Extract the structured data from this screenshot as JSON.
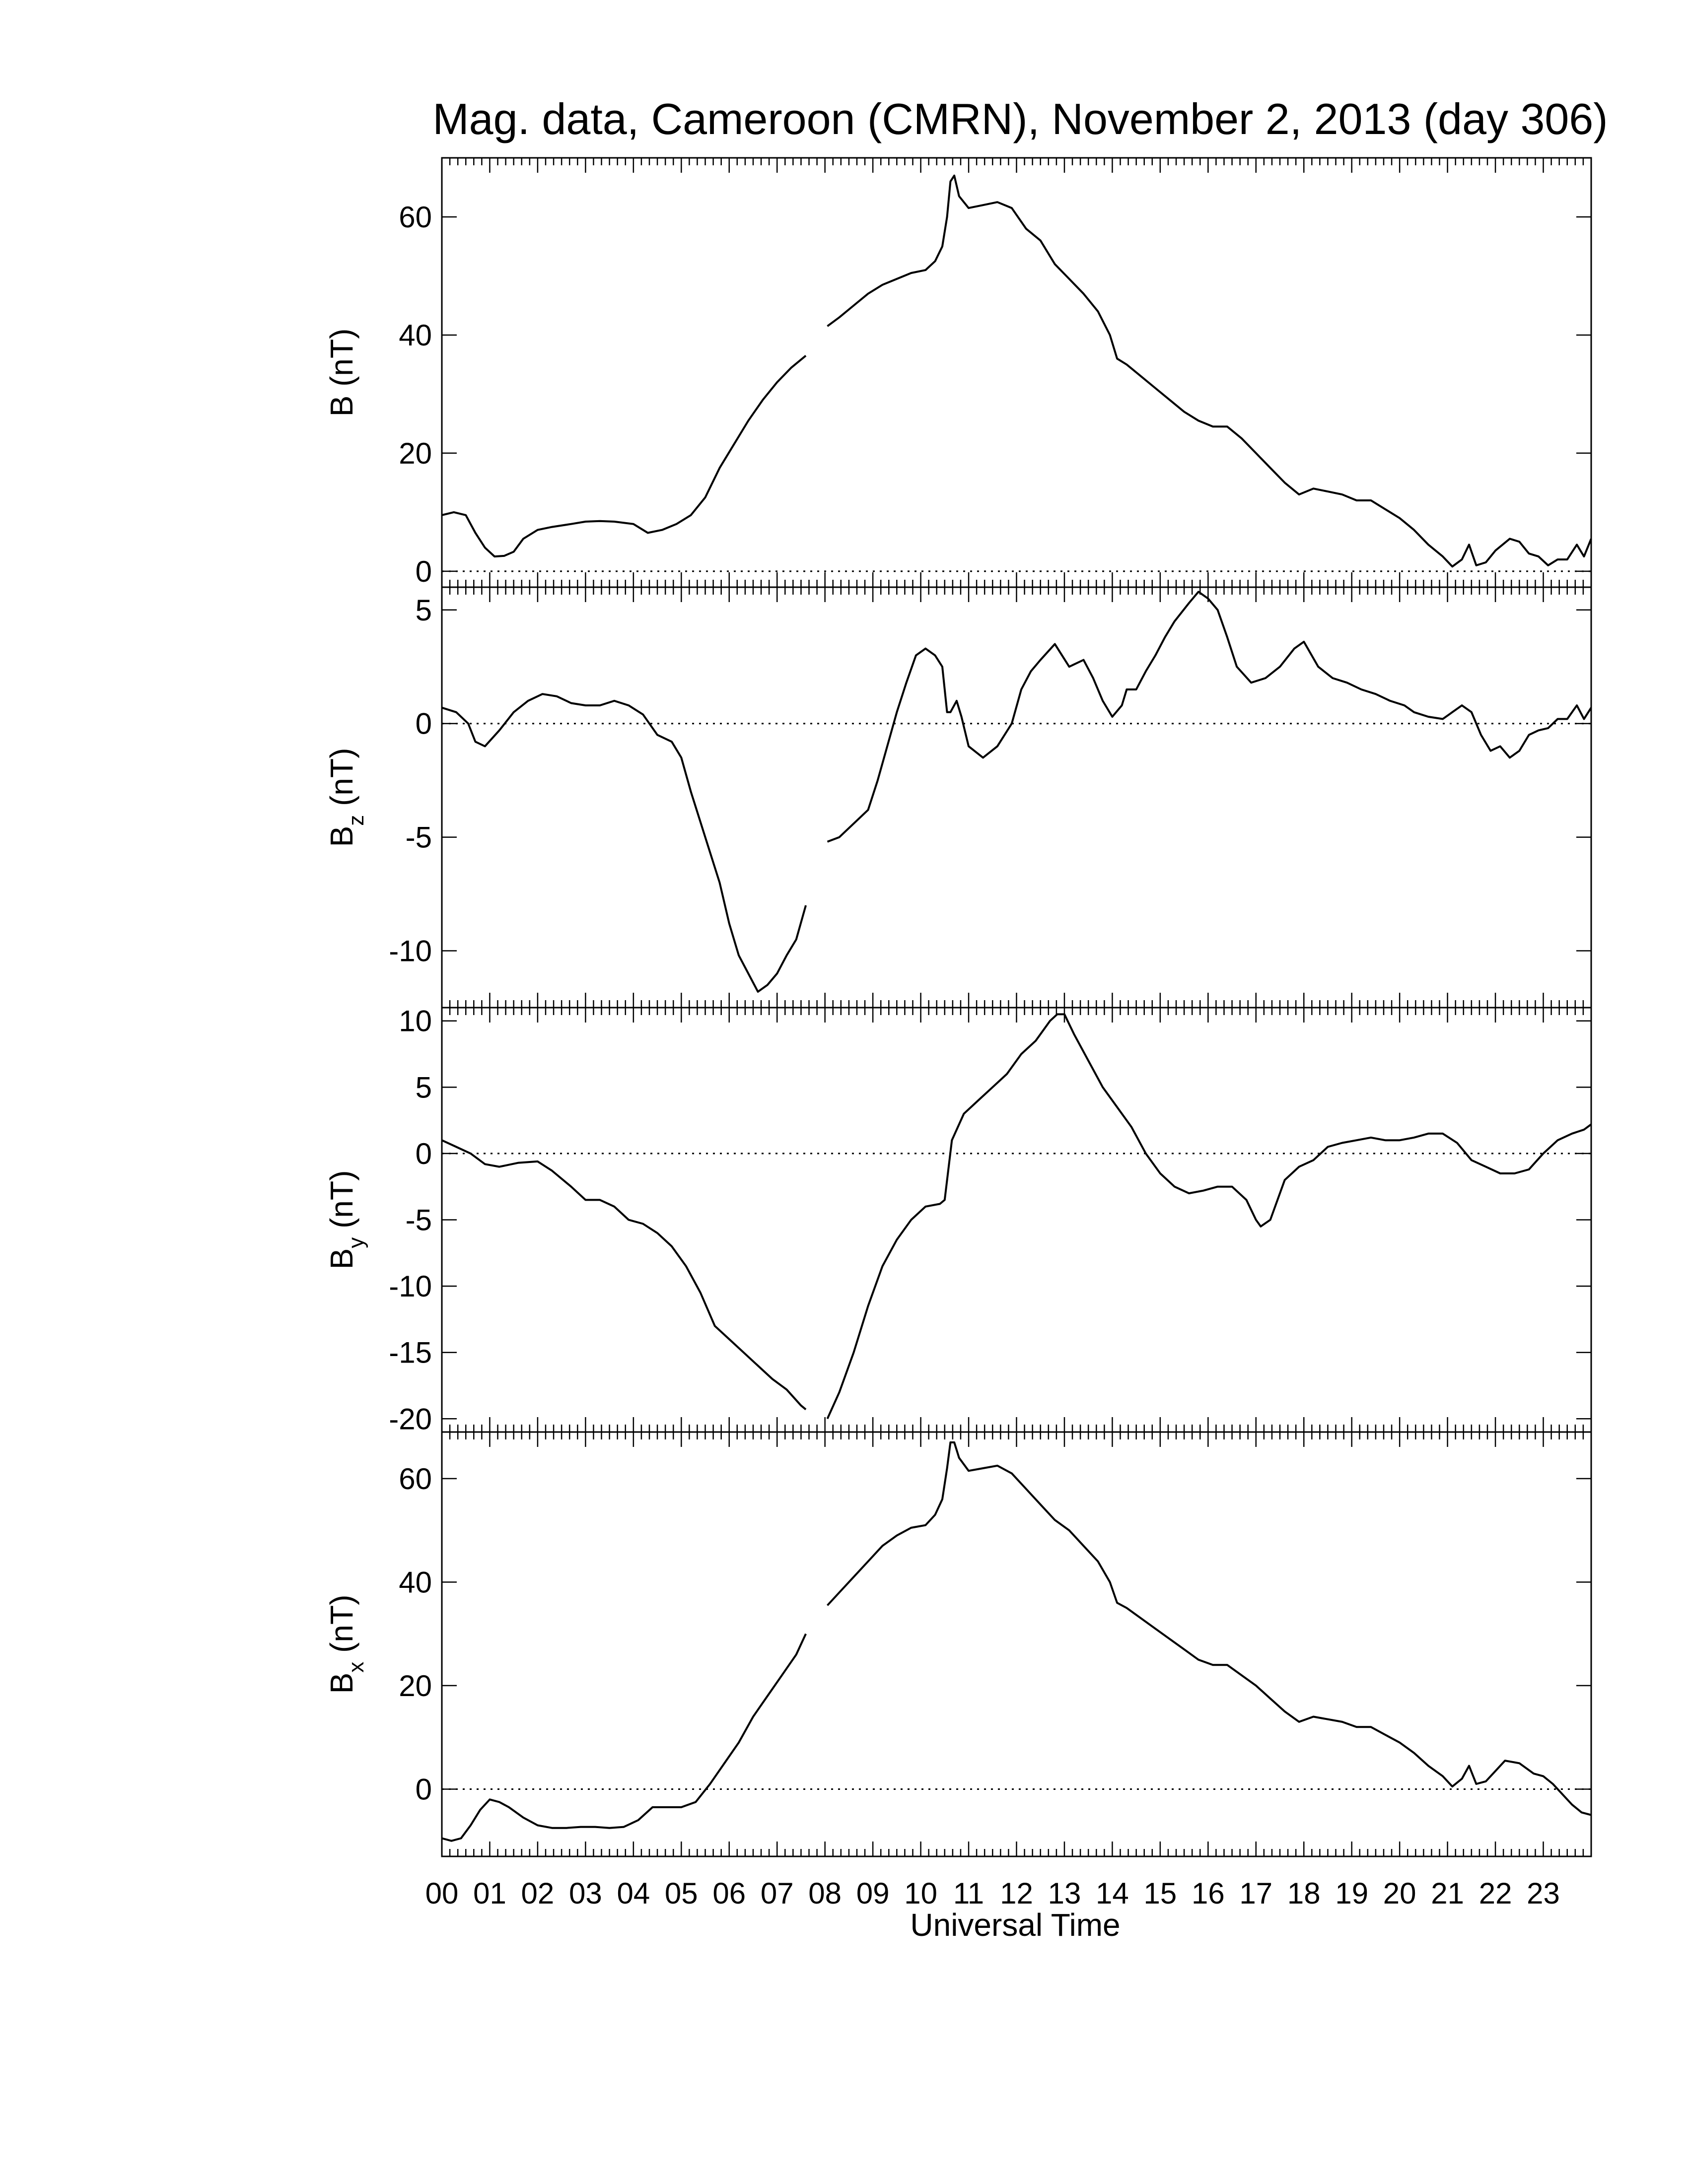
{
  "chart_data": {
    "type": "line",
    "title": "Mag. data, Cameroon (CMRN), November 2, 2013 (day 306)",
    "xlabel": "Universal Time",
    "xlim": [
      0,
      24
    ],
    "x_tick_labels": [
      "00",
      "01",
      "02",
      "03",
      "04",
      "05",
      "06",
      "07",
      "08",
      "09",
      "10",
      "11",
      "12",
      "13",
      "14",
      "15",
      "16",
      "17",
      "18",
      "19",
      "20",
      "21",
      "22",
      "23"
    ],
    "line_color": "#000000",
    "zero_reference_line": "dotted",
    "data_gap_hours": [
      7.6,
      8.05
    ],
    "panels": [
      {
        "id": "B",
        "ylabel_main": "B",
        "ylabel_sub": "",
        "ylabel_unit": " (nT)",
        "ylim": [
          -2.7,
          70
        ],
        "yticks": [
          0,
          20,
          40,
          60
        ],
        "x": [
          0,
          0.25,
          0.5,
          0.7,
          0.9,
          1.1,
          1.3,
          1.5,
          1.7,
          2,
          2.3,
          2.7,
          3,
          3.3,
          3.6,
          4,
          4.3,
          4.6,
          4.9,
          5.2,
          5.5,
          5.8,
          6.1,
          6.4,
          6.7,
          7,
          7.3,
          7.6,
          8.05,
          8.3,
          8.6,
          8.9,
          9.2,
          9.5,
          9.8,
          10.1,
          10.3,
          10.45,
          10.55,
          10.62,
          10.7,
          10.8,
          11,
          11.3,
          11.6,
          11.9,
          12.2,
          12.5,
          12.8,
          13.1,
          13.4,
          13.7,
          13.95,
          14.1,
          14.3,
          14.6,
          14.9,
          15.2,
          15.5,
          15.8,
          16.1,
          16.4,
          16.7,
          17,
          17.3,
          17.6,
          17.9,
          18.2,
          18.5,
          18.8,
          19.1,
          19.4,
          19.7,
          20,
          20.3,
          20.6,
          20.9,
          21.1,
          21.3,
          21.45,
          21.6,
          21.8,
          22,
          22.3,
          22.5,
          22.7,
          22.9,
          23.1,
          23.3,
          23.5,
          23.7,
          23.85,
          24
        ],
        "y": [
          9.5,
          10,
          9.5,
          6.5,
          4,
          2.5,
          2.6,
          3.3,
          5.5,
          7,
          7.5,
          8,
          8.4,
          8.5,
          8.4,
          8,
          6.5,
          7,
          8,
          9.5,
          12.5,
          17.5,
          21.5,
          25.5,
          29,
          32,
          34.5,
          36.5,
          41.5,
          43,
          45,
          47,
          48.5,
          49.5,
          50.5,
          51,
          52.5,
          55,
          60,
          66,
          67,
          63.5,
          61.5,
          62,
          62.5,
          61.5,
          58,
          56,
          52,
          49.5,
          47,
          44,
          40,
          36,
          35,
          33,
          31,
          29,
          27,
          25.5,
          24.5,
          24.5,
          22.5,
          20,
          17.5,
          15,
          13,
          14,
          13.5,
          13,
          12,
          12,
          10.5,
          9,
          7,
          4.5,
          2.5,
          0.8,
          2,
          4.5,
          1,
          1.5,
          3.5,
          5.5,
          5,
          3,
          2.5,
          1,
          2,
          2,
          4.5,
          2.5,
          5.5
        ]
      },
      {
        "id": "Bz",
        "ylabel_main": "B",
        "ylabel_sub": "z",
        "ylabel_unit": " (nT)",
        "ylim": [
          -12.5,
          6
        ],
        "yticks": [
          5,
          0,
          -5,
          -10
        ],
        "x": [
          0,
          0.3,
          0.55,
          0.7,
          0.9,
          1.2,
          1.5,
          1.8,
          2.1,
          2.4,
          2.7,
          3,
          3.3,
          3.6,
          3.9,
          4.2,
          4.5,
          4.8,
          5,
          5.2,
          5.5,
          5.8,
          6,
          6.2,
          6.4,
          6.6,
          6.8,
          7,
          7.2,
          7.4,
          7.6,
          8.05,
          8.3,
          8.6,
          8.9,
          9.1,
          9.3,
          9.5,
          9.7,
          9.9,
          10.1,
          10.3,
          10.45,
          10.55,
          10.62,
          10.75,
          10.85,
          11,
          11.3,
          11.6,
          11.9,
          12.1,
          12.3,
          12.5,
          12.8,
          13.1,
          13.4,
          13.6,
          13.8,
          14,
          14.2,
          14.3,
          14.5,
          14.7,
          14.9,
          15.1,
          15.3,
          15.6,
          15.8,
          16,
          16.2,
          16.4,
          16.6,
          16.9,
          17.2,
          17.5,
          17.8,
          18,
          18.3,
          18.6,
          18.9,
          19.2,
          19.5,
          19.8,
          20.1,
          20.3,
          20.6,
          20.9,
          21.1,
          21.3,
          21.5,
          21.7,
          21.9,
          22.1,
          22.3,
          22.5,
          22.7,
          22.9,
          23.1,
          23.3,
          23.5,
          23.7,
          23.85,
          24
        ],
        "y": [
          0.7,
          0.5,
          0,
          -0.8,
          -1,
          -0.3,
          0.5,
          1,
          1.3,
          1.2,
          0.9,
          0.8,
          0.8,
          1,
          0.8,
          0.4,
          -0.5,
          -0.8,
          -1.5,
          -3,
          -5,
          -7,
          -8.8,
          -10.2,
          -11,
          -11.8,
          -11.5,
          -11,
          -10.2,
          -9.5,
          -8,
          -5.2,
          -5,
          -4.4,
          -3.8,
          -2.5,
          -1,
          0.5,
          1.8,
          3,
          3.3,
          3,
          2.5,
          0.5,
          0.5,
          1,
          0.3,
          -1,
          -1.5,
          -1,
          0,
          1.5,
          2.3,
          2.8,
          3.5,
          2.5,
          2.8,
          2,
          1,
          0.3,
          0.8,
          1.5,
          1.5,
          2.3,
          3,
          3.8,
          4.5,
          5.3,
          5.8,
          5.5,
          5,
          3.8,
          2.5,
          1.8,
          2,
          2.5,
          3.3,
          3.6,
          2.5,
          2,
          1.8,
          1.5,
          1.3,
          1,
          0.8,
          0.5,
          0.3,
          0.2,
          0.5,
          0.8,
          0.5,
          -0.5,
          -1.2,
          -1,
          -1.5,
          -1.2,
          -0.5,
          -0.3,
          -0.2,
          0.2,
          0.2,
          0.8,
          0.2,
          0.7
        ]
      },
      {
        "id": "By",
        "ylabel_main": "B",
        "ylabel_sub": "y",
        "ylabel_unit": " (nT)",
        "ylim": [
          -21,
          11
        ],
        "yticks": [
          10,
          5,
          0,
          -5,
          -10,
          -15,
          -20
        ],
        "x": [
          0,
          0.3,
          0.6,
          0.9,
          1.2,
          1.6,
          2,
          2.3,
          2.7,
          3,
          3.3,
          3.6,
          3.9,
          4.2,
          4.5,
          4.8,
          5.1,
          5.4,
          5.7,
          6,
          6.3,
          6.6,
          6.9,
          7.2,
          7.5,
          7.6,
          8.05,
          8.3,
          8.6,
          8.9,
          9.2,
          9.5,
          9.8,
          10.1,
          10.4,
          10.5,
          10.65,
          10.9,
          11.2,
          11.5,
          11.8,
          12.1,
          12.4,
          12.7,
          12.85,
          13,
          13.2,
          13.5,
          13.8,
          14.1,
          14.4,
          14.7,
          15,
          15.3,
          15.6,
          15.9,
          16.2,
          16.5,
          16.8,
          17,
          17.1,
          17.3,
          17.6,
          17.9,
          18.2,
          18.5,
          18.8,
          19.1,
          19.4,
          19.7,
          20,
          20.3,
          20.6,
          20.9,
          21.2,
          21.5,
          21.8,
          22.1,
          22.4,
          22.7,
          23,
          23.3,
          23.6,
          23.85,
          24
        ],
        "y": [
          1,
          0.5,
          0,
          -0.8,
          -1,
          -0.7,
          -0.6,
          -1.3,
          -2.5,
          -3.5,
          -3.5,
          -4,
          -5,
          -5.3,
          -6,
          -7,
          -8.5,
          -10.5,
          -13,
          -14,
          -15,
          -16,
          -17,
          -17.8,
          -19,
          -19.3,
          -20,
          -18,
          -15,
          -11.5,
          -8.5,
          -6.5,
          -5,
          -4,
          -3.8,
          -3.5,
          1,
          3,
          4,
          5,
          6,
          7.5,
          8.5,
          10,
          10.5,
          10.5,
          9,
          7,
          5,
          3.5,
          2,
          0,
          -1.5,
          -2.5,
          -3,
          -2.8,
          -2.5,
          -2.5,
          -3.5,
          -5,
          -5.5,
          -5,
          -2,
          -1,
          -0.5,
          0.5,
          0.8,
          1,
          1.2,
          1,
          1,
          1.2,
          1.5,
          1.5,
          0.8,
          -0.5,
          -1,
          -1.5,
          -1.5,
          -1.2,
          0,
          1,
          1.5,
          1.8,
          2.2
        ]
      },
      {
        "id": "Bx",
        "ylabel_main": "B",
        "ylabel_sub": "x",
        "ylabel_unit": " (nT)",
        "ylim": [
          -13,
          69
        ],
        "yticks": [
          60,
          40,
          20,
          0
        ],
        "x": [
          0,
          0.2,
          0.4,
          0.6,
          0.8,
          1,
          1.2,
          1.4,
          1.7,
          2,
          2.3,
          2.6,
          2.9,
          3.2,
          3.5,
          3.8,
          4.1,
          4.4,
          4.7,
          5,
          5.3,
          5.6,
          5.9,
          6.2,
          6.5,
          6.8,
          7.1,
          7.4,
          7.6,
          8.05,
          8.3,
          8.6,
          8.9,
          9.2,
          9.5,
          9.8,
          10.1,
          10.3,
          10.45,
          10.55,
          10.62,
          10.7,
          10.8,
          11,
          11.3,
          11.6,
          11.9,
          12.2,
          12.5,
          12.8,
          13.1,
          13.4,
          13.7,
          13.95,
          14.1,
          14.3,
          14.6,
          14.9,
          15.2,
          15.5,
          15.8,
          16.1,
          16.4,
          16.7,
          17,
          17.3,
          17.6,
          17.9,
          18.2,
          18.5,
          18.8,
          19.1,
          19.4,
          19.7,
          20,
          20.3,
          20.6,
          20.9,
          21.1,
          21.3,
          21.45,
          21.6,
          21.8,
          22,
          22.2,
          22.5,
          22.8,
          23,
          23.2,
          23.4,
          23.6,
          23.8,
          24
        ],
        "y": [
          -9.5,
          -10,
          -9.5,
          -7,
          -4,
          -2,
          -2.5,
          -3.5,
          -5.5,
          -7,
          -7.5,
          -7.5,
          -7.3,
          -7.3,
          -7.5,
          -7.3,
          -6,
          -3.5,
          -3.5,
          -3.5,
          -2.5,
          1,
          5,
          9,
          14,
          18,
          22,
          26,
          30,
          35.5,
          38,
          41,
          44,
          47,
          49,
          50.5,
          51,
          53,
          56,
          62,
          67,
          67,
          64,
          61.5,
          62,
          62.5,
          61,
          58,
          55,
          52,
          50,
          47,
          44,
          40,
          36,
          35,
          33,
          31,
          29,
          27,
          25,
          24,
          24,
          22,
          20,
          17.5,
          15,
          13,
          14,
          13.5,
          13,
          12,
          12,
          10.5,
          9,
          7,
          4.5,
          2.5,
          0.5,
          2,
          4.5,
          1,
          1.5,
          3.5,
          5.5,
          5,
          3,
          2.5,
          1,
          -1,
          -3,
          -4.5,
          -5
        ]
      }
    ]
  }
}
